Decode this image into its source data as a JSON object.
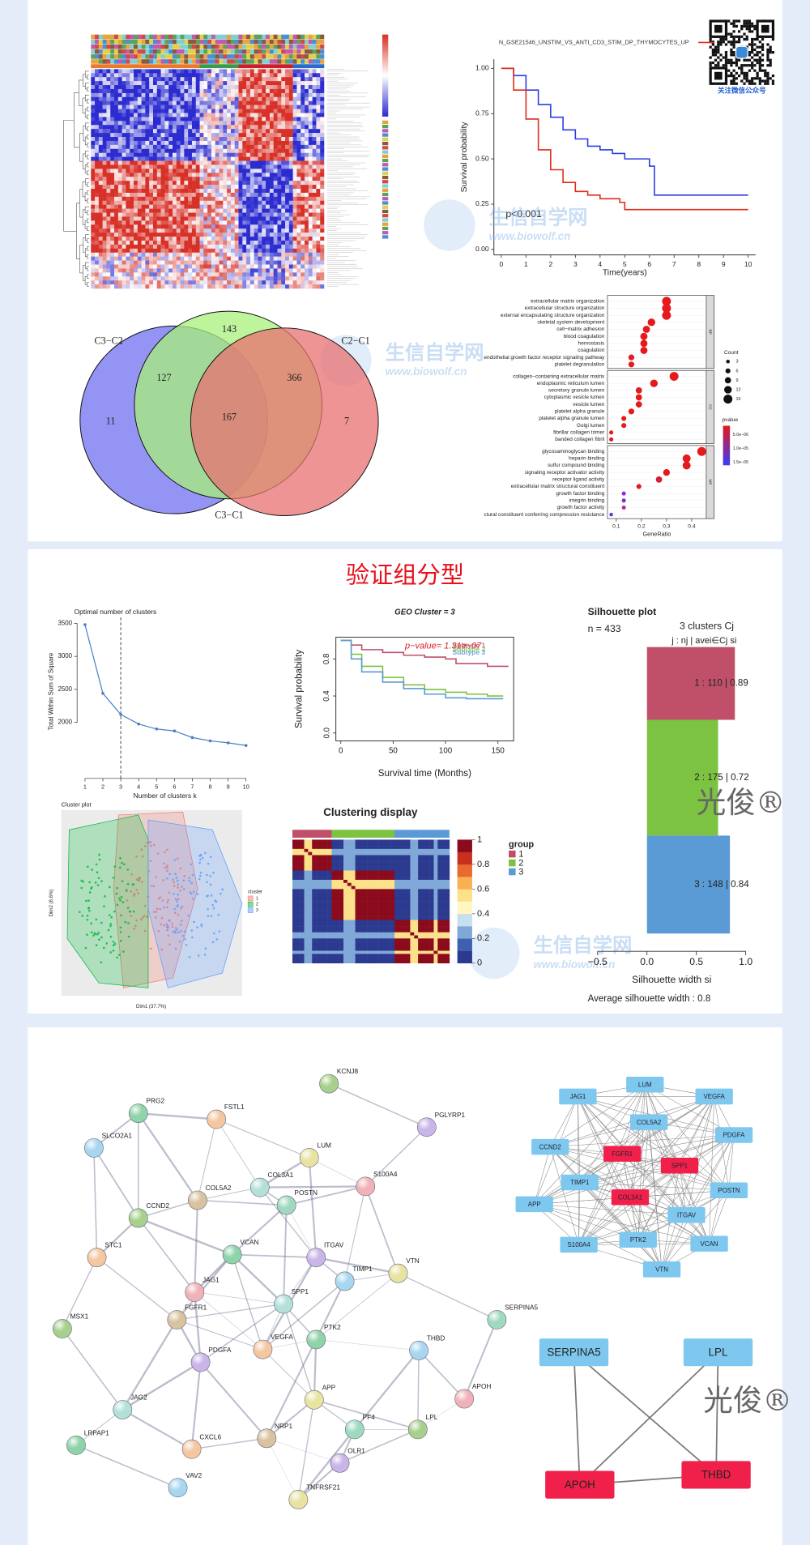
{
  "watermark": {
    "site": "生信自学网",
    "url": "www.biowolf.cn"
  },
  "qr_caption": "关注微信公众号",
  "trademark": "光俊®",
  "survival_plot": {
    "type": "line",
    "title": "N_GSE21546_UNSTIM_VS_ANTI_CD3_STIM_DP_THYMOCYTES_UP",
    "xlabel": "Time(years)",
    "ylabel": "Survival probability",
    "annotation": "p<0.001",
    "xlim": [
      -0.3,
      10.3
    ],
    "ylim": [
      -0.03,
      1.05
    ],
    "xticks": [
      0,
      1,
      2,
      3,
      4,
      5,
      6,
      7,
      8,
      9,
      10
    ],
    "yticks": [
      {
        "value": 0,
        "label": "0.00"
      },
      0.25,
      {
        "value": 0.5,
        "label": "0.50"
      },
      0.75,
      {
        "value": 1,
        "label": "1.00"
      }
    ],
    "series": [
      {
        "color": "#2a3fe0",
        "x": [
          0,
          0.5,
          1,
          1.5,
          2,
          2.5,
          3,
          3.5,
          4,
          4.5,
          5,
          6,
          6.2,
          10
        ],
        "values": [
          1,
          0.96,
          0.88,
          0.8,
          0.73,
          0.66,
          0.61,
          0.57,
          0.55,
          0.53,
          0.5,
          0.46,
          0.3,
          0.3
        ]
      },
      {
        "color": "#e02a1a",
        "x": [
          0,
          0.5,
          1,
          1.5,
          2,
          2.5,
          3,
          3.5,
          4,
          4.8,
          5,
          10
        ],
        "values": [
          1,
          0.88,
          0.72,
          0.55,
          0.44,
          0.37,
          0.32,
          0.3,
          0.28,
          0.26,
          0.22,
          0.22
        ]
      }
    ]
  },
  "venn": {
    "sets": [
      "C3−C2",
      "C2−C1",
      "C3−C1"
    ],
    "regions": [
      143,
      11,
      127,
      167,
      366,
      7
    ]
  },
  "enrichment": {
    "type": "dot",
    "xlabel": "GeneRatio",
    "xlim": [
      0.065,
      0.458
    ],
    "xticks": [
      0.1,
      0.2,
      0.3,
      0.4
    ],
    "size_legend": {
      "title": "Count",
      "values": [
        3,
        6,
        9,
        12,
        15
      ]
    },
    "color_legend": {
      "title": "pvalue",
      "ticks": [
        "5.0e−06",
        "1.0e−05",
        "1.5e−05"
      ]
    },
    "facets": [
      {
        "name": "BP",
        "terms": [
          "extracellular matrix organization",
          "extracellular structure organization",
          "external encapsulating structure organization",
          "skeletal system development",
          "cell−matrix adhesion",
          "blood coagulation",
          "hemostasis",
          "coagulation",
          "endothelial growth factor receptor signaling pathway",
          "platelet degranulation"
        ],
        "gene_ratio": [
          0.3,
          0.3,
          0.3,
          0.24,
          0.22,
          0.21,
          0.21,
          0.21,
          0.16,
          0.16
        ],
        "count": [
          15,
          15,
          15,
          12,
          11,
          11,
          11,
          11,
          8,
          8
        ],
        "colors": [
          "#e41a1c",
          "#e41a1c",
          "#e41a1c",
          "#e41a1c",
          "#e41a1c",
          "#e41a1c",
          "#e41a1c",
          "#e41a1c",
          "#e41a1c",
          "#e41a1c"
        ]
      },
      {
        "name": "CC",
        "terms": [
          "collagen−containing extracellular matrix",
          "endoplasmic reticulum lumen",
          "secretory granule lumen",
          "cytoplasmic vesicle lumen",
          "vesicle lumen",
          "platelet alpha granule",
          "platelet alpha granule lumen",
          "Golgi lumen",
          "fibrillar collagen trimer",
          "banded collagen fibril"
        ],
        "gene_ratio": [
          0.33,
          0.25,
          0.19,
          0.19,
          0.19,
          0.16,
          0.13,
          0.13,
          0.08,
          0.08
        ],
        "count": [
          15,
          12,
          9,
          9,
          9,
          8,
          6,
          6,
          4,
          4
        ],
        "colors": [
          "#e41a1c",
          "#e41a1c",
          "#e41a1c",
          "#e41a1c",
          "#e41a1c",
          "#e41a1c",
          "#e41a1c",
          "#e41a1c",
          "#e41a1c",
          "#e41a1c"
        ]
      },
      {
        "name": "MF",
        "terms": [
          "glycosaminoglycan binding",
          "heparin binding",
          "sulfur compound binding",
          "signaling receptor activator activity",
          "receptor ligand activity",
          "extracellular matrix structural constituent",
          "growth factor binding",
          "integrin binding",
          "growth factor activity",
          "ctural constituent conferring compression resistance"
        ],
        "gene_ratio": [
          0.44,
          0.38,
          0.38,
          0.3,
          0.27,
          0.19,
          0.13,
          0.13,
          0.13,
          0.08
        ],
        "count": [
          15,
          13,
          13,
          10,
          9,
          6,
          4,
          4,
          4,
          3
        ],
        "colors": [
          "#e41a1c",
          "#e41a1c",
          "#e41a1c",
          "#e41a1c",
          "#d81b3a",
          "#e41a1c",
          "#8a2be2",
          "#7b2fd6",
          "#b0308a",
          "#6a35d8"
        ]
      }
    ]
  },
  "validation_title": "验证组分型",
  "elbow": {
    "type": "line",
    "title": "Optimal number of clusters",
    "xlabel": "Number of clusters k",
    "ylabel": "Total Within Sum of Square",
    "x": [
      1,
      2,
      3,
      4,
      5,
      6,
      7,
      8,
      9,
      10
    ],
    "values": [
      3480,
      2440,
      2120,
      1975,
      1900,
      1870,
      1770,
      1720,
      1690,
      1650
    ],
    "xlim": [
      0.67,
      10.33
    ],
    "ylim": [
      1570,
      3590
    ],
    "xticks": [
      1,
      2,
      3,
      4,
      5,
      6,
      7,
      8,
      9,
      10
    ],
    "yticks": [
      2000,
      2500,
      3000,
      3500
    ],
    "color": "#4a7fc1",
    "marker_x": 3
  },
  "cluster_plot": {
    "type": "scatter",
    "title": "Cluster plot",
    "xlabel": "Dim1 (37.7%)",
    "ylabel": "Dim2 (8.6%)",
    "legend_title": "cluster",
    "groups": [
      {
        "name": "1",
        "color": "#F8766D"
      },
      {
        "name": "2",
        "color": "#00BA38"
      },
      {
        "name": "3",
        "color": "#619CFF"
      }
    ]
  },
  "subtype_survival": {
    "type": "line",
    "title": "GEO Cluster = 3",
    "xlabel": "Survival time (Months)",
    "ylabel": "Survival probability",
    "annotation": "p−value= 1.31e−07",
    "xlim": [
      -4.7,
      165
    ],
    "ylim": [
      -0.085,
      1.035
    ],
    "xticks": [
      0,
      50,
      100,
      150
    ],
    "yticks": [
      {
        "value": 0,
        "label": "0.0"
      },
      0.4,
      0.8
    ],
    "series": [
      {
        "name": "Subtype 1",
        "color": "#c0506a",
        "x": [
          0,
          10,
          20,
          40,
          60,
          80,
          100,
          110,
          140,
          160
        ],
        "values": [
          1,
          0.95,
          0.9,
          0.87,
          0.84,
          0.82,
          0.8,
          0.75,
          0.72,
          0.72
        ]
      },
      {
        "name": "Subtype 2",
        "color": "#7cc342",
        "x": [
          0,
          10,
          20,
          40,
          60,
          80,
          100,
          120,
          140,
          155
        ],
        "values": [
          1,
          0.85,
          0.72,
          0.6,
          0.52,
          0.47,
          0.44,
          0.42,
          0.4,
          0.4
        ]
      },
      {
        "name": "Subtype 3",
        "color": "#5b9bd5",
        "x": [
          0,
          10,
          20,
          40,
          60,
          80,
          100,
          120,
          155
        ],
        "values": [
          1,
          0.8,
          0.66,
          0.55,
          0.48,
          0.42,
          0.38,
          0.37,
          0.37
        ]
      }
    ]
  },
  "consensus": {
    "type": "heatmap",
    "title": "Clustering display",
    "colorbar_ticks": [
      0,
      0.2,
      0.4,
      0.6,
      0.8,
      1
    ],
    "legend_title": "group",
    "groups": [
      {
        "name": "1",
        "color": "#c0506a"
      },
      {
        "name": "2",
        "color": "#7cc342"
      },
      {
        "name": "3",
        "color": "#5b9bd5"
      }
    ]
  },
  "silhouette": {
    "type": "bar",
    "title": "Silhouette plot",
    "n_label": "n = 433",
    "header": [
      "3  clusters  Cj",
      "j :  nj | avei∈Cj  si"
    ],
    "xlim": [
      -0.6,
      1.05
    ],
    "xticks": [
      {
        "value": -0.5,
        "label": "−0.5"
      },
      {
        "value": 0,
        "label": "0.0"
      },
      0.5,
      {
        "value": 1,
        "label": "1.0"
      }
    ],
    "xlabel": "Silhouette width si",
    "footer": "Average silhouette width :  0.8",
    "clusters": [
      {
        "n": 110,
        "avg": 0.89,
        "label": "1 :  110  |  0.89",
        "color": "#c0506a"
      },
      {
        "n": 175,
        "avg": 0.72,
        "label": "2 :  175  |  0.72",
        "color": "#7cc342"
      },
      {
        "n": 148,
        "avg": 0.84,
        "label": "3 :  148  |  0.84",
        "color": "#5b9bd5"
      }
    ]
  },
  "string_network": {
    "nodes": [
      "KCNJ8",
      "PRG2",
      "FSTL1",
      "PGLYRP1",
      "SLCO2A1",
      "LUM",
      "S100A4",
      "COL3A1",
      "COL5A2",
      "POSTN",
      "CCND2",
      "VCAN",
      "STC1",
      "ITGAV",
      "TIMP1",
      "VTN",
      "JAG1",
      "SPP1",
      "FGFR1",
      "SERPINA5",
      "MSX1",
      "PTK2",
      "VEGFA",
      "PDGFA",
      "THBD",
      "APP",
      "APOH",
      "JAG2",
      "NRP1",
      "PF4",
      "LPL",
      "LRPAP1",
      "CXCL6",
      "OLR1",
      "VAV2",
      "TNFRSF21"
    ]
  },
  "cytoscape_network": {
    "nodes": [
      {
        "label": "JAG1",
        "color": "#7ec8f0"
      },
      {
        "label": "LUM",
        "color": "#7ec8f0"
      },
      {
        "label": "VEGFA",
        "color": "#7ec8f0"
      },
      {
        "label": "COL5A2",
        "color": "#7ec8f0"
      },
      {
        "label": "PDGFA",
        "color": "#7ec8f0"
      },
      {
        "label": "CCND2",
        "color": "#7ec8f0"
      },
      {
        "label": "FGFR1",
        "color": "#f0204a"
      },
      {
        "label": "SPP1",
        "color": "#f0204a"
      },
      {
        "label": "POSTN",
        "color": "#7ec8f0"
      },
      {
        "label": "TIMP1",
        "color": "#7ec8f0"
      },
      {
        "label": "COL3A1",
        "color": "#f0204a"
      },
      {
        "label": "APP",
        "color": "#7ec8f0"
      },
      {
        "label": "ITGAV",
        "color": "#7ec8f0"
      },
      {
        "label": "VCAN",
        "color": "#7ec8f0"
      },
      {
        "label": "S100A4",
        "color": "#7ec8f0"
      },
      {
        "label": "PTK2",
        "color": "#7ec8f0"
      },
      {
        "label": "VTN",
        "color": "#7ec8f0"
      }
    ]
  },
  "core_network": {
    "nodes": [
      {
        "label": "SERPINA5",
        "color": "#7ec8f0"
      },
      {
        "label": "LPL",
        "color": "#7ec8f0"
      },
      {
        "label": "APOH",
        "color": "#f0204a"
      },
      {
        "label": "THBD",
        "color": "#f0204a"
      }
    ]
  }
}
